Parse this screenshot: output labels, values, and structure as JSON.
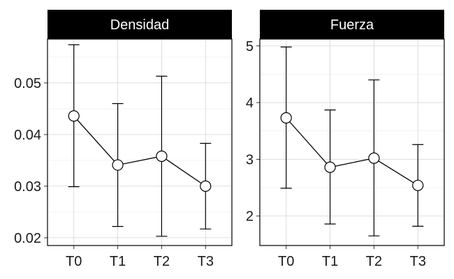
{
  "chart_data": [
    {
      "type": "line",
      "title": "Densidad",
      "categories": [
        "T0",
        "T1",
        "T2",
        "T3"
      ],
      "values": [
        0.0436,
        0.0341,
        0.0358,
        0.03
      ],
      "error_low": [
        0.0299,
        0.0222,
        0.0203,
        0.0217
      ],
      "error_high": [
        0.0574,
        0.046,
        0.0513,
        0.0383
      ],
      "ylim": [
        0.0185,
        0.0585
      ],
      "yticks": [
        0.02,
        0.03,
        0.04,
        0.05
      ],
      "ytick_labels": [
        "0.02",
        "0.03",
        "0.04",
        "0.05"
      ],
      "grid": true
    },
    {
      "type": "line",
      "title": "Fuerza",
      "categories": [
        "T0",
        "T1",
        "T2",
        "T3"
      ],
      "values": [
        3.73,
        2.86,
        3.02,
        2.54
      ],
      "error_low": [
        2.49,
        1.86,
        1.65,
        1.82
      ],
      "error_high": [
        4.98,
        3.87,
        4.4,
        3.26
      ],
      "ylim": [
        1.48,
        5.12
      ],
      "yticks": [
        2,
        3,
        4,
        5
      ],
      "ytick_labels": [
        "2",
        "3",
        "4",
        "5"
      ],
      "grid": true
    }
  ]
}
